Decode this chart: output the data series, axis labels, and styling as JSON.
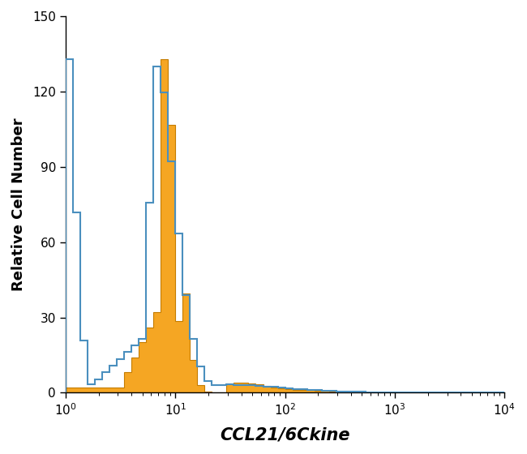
{
  "title": "",
  "xlabel": "CCL21/6Ckine",
  "ylabel": "Relative Cell Number",
  "xlim": [
    1,
    10000
  ],
  "ylim": [
    0,
    150
  ],
  "yticks": [
    0,
    30,
    60,
    90,
    120,
    150
  ],
  "blue_color": "#4a8fbe",
  "orange_color": "#F5A623",
  "orange_edge_color": "#c47c00",
  "background_color": "#ffffff",
  "blue_peak_height": 133,
  "orange_peak_height": 133,
  "n_bins": 60
}
